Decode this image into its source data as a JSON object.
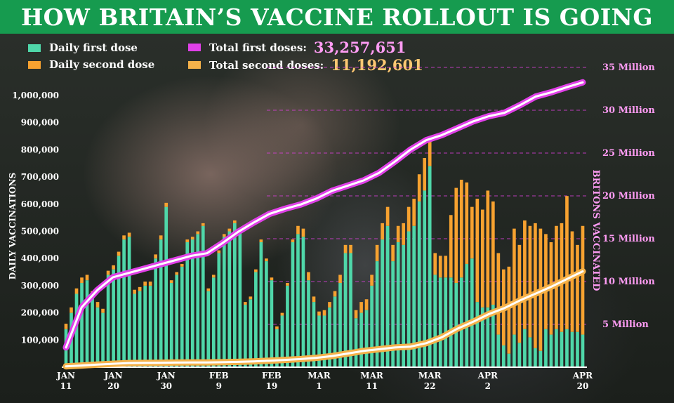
{
  "header": {
    "title": "HOW BRITAIN’S VACCINE ROLLOUT IS GOING"
  },
  "legend": {
    "daily_first": {
      "label": "Daily first dose",
      "color": "#4fd7a9"
    },
    "daily_second": {
      "label": "Daily second dose",
      "color": "#f7a230"
    },
    "total_first": {
      "label": "Total first doses:",
      "value": "33,257,651",
      "color": "#e040e8",
      "value_color": "#ff9cf4"
    },
    "total_second": {
      "label": "Total second doses:",
      "value": "11,192,601",
      "color": "#f5b24a",
      "value_color": "#ffc872"
    }
  },
  "chart_data": {
    "type": "bar",
    "ylabel": "DAILY VACCINATIONS",
    "ylabel_right": "BRITONS VACCINATED",
    "ylim": [
      0,
      1100000
    ],
    "ylim_right": [
      0,
      38000000
    ],
    "yticks": [
      {
        "value": 100000,
        "label": "100,000"
      },
      {
        "value": 200000,
        "label": "200,000"
      },
      {
        "value": 300000,
        "label": "300,000"
      },
      {
        "value": 400000,
        "label": "400,000"
      },
      {
        "value": 500000,
        "label": "500,000"
      },
      {
        "value": 600000,
        "label": "600,000"
      },
      {
        "value": 700000,
        "label": "700,000"
      },
      {
        "value": 800000,
        "label": "800,000"
      },
      {
        "value": 900000,
        "label": "900,000"
      },
      {
        "value": 1000000,
        "label": "1,000,000"
      }
    ],
    "yticks_right": [
      {
        "value": 5000000,
        "label": "5 Million"
      },
      {
        "value": 10000000,
        "label": "10 Million"
      },
      {
        "value": 15000000,
        "label": "15 Million"
      },
      {
        "value": 20000000,
        "label": "20 Million"
      },
      {
        "value": 25000000,
        "label": "25 Million"
      },
      {
        "value": 30000000,
        "label": "30 Million"
      },
      {
        "value": 35000000,
        "label": "35 Million"
      }
    ],
    "xticks": [
      {
        "index": 0,
        "label": "JAN\n11"
      },
      {
        "index": 9,
        "label": "JAN\n20"
      },
      {
        "index": 19,
        "label": "JAN\n30"
      },
      {
        "index": 29,
        "label": "FEB\n9"
      },
      {
        "index": 39,
        "label": "FEB\n19"
      },
      {
        "index": 48,
        "label": "MAR\n1"
      },
      {
        "index": 58,
        "label": "MAR\n11"
      },
      {
        "index": 69,
        "label": "MAR\n22"
      },
      {
        "index": 80,
        "label": "APR\n2"
      },
      {
        "index": 98,
        "label": "APR\n20"
      }
    ],
    "series": [
      {
        "name": "Daily first dose",
        "type": "bar",
        "color": "#4fd7a9",
        "values": [
          140000,
          200000,
          270000,
          310000,
          320000,
          260000,
          220000,
          200000,
          340000,
          360000,
          410000,
          470000,
          480000,
          270000,
          280000,
          300000,
          300000,
          400000,
          470000,
          590000,
          310000,
          340000,
          370000,
          460000,
          470000,
          490000,
          520000,
          280000,
          330000,
          420000,
          480000,
          500000,
          530000,
          500000,
          230000,
          250000,
          350000,
          460000,
          390000,
          320000,
          140000,
          190000,
          300000,
          460000,
          490000,
          480000,
          320000,
          240000,
          190000,
          190000,
          220000,
          260000,
          310000,
          420000,
          420000,
          180000,
          200000,
          210000,
          300000,
          390000,
          470000,
          520000,
          390000,
          460000,
          450000,
          500000,
          520000,
          610000,
          650000,
          740000,
          340000,
          330000,
          330000,
          330000,
          310000,
          330000,
          380000,
          400000,
          240000,
          220000,
          220000,
          230000,
          120000,
          80000,
          50000,
          120000,
          90000,
          140000,
          110000,
          70000,
          60000,
          140000,
          120000,
          140000,
          130000,
          140000,
          130000,
          130000,
          120000
        ]
      },
      {
        "name": "Daily second dose",
        "type": "bar",
        "color": "#f7a230",
        "values": [
          20000,
          20000,
          20000,
          20000,
          20000,
          20000,
          20000,
          15000,
          15000,
          15000,
          15000,
          15000,
          15000,
          15000,
          15000,
          15000,
          15000,
          15000,
          15000,
          15000,
          10000,
          10000,
          10000,
          10000,
          10000,
          10000,
          10000,
          10000,
          10000,
          10000,
          10000,
          10000,
          10000,
          10000,
          10000,
          10000,
          10000,
          10000,
          10000,
          10000,
          10000,
          10000,
          10000,
          10000,
          30000,
          30000,
          30000,
          20000,
          15000,
          20000,
          20000,
          20000,
          30000,
          30000,
          30000,
          30000,
          40000,
          40000,
          40000,
          60000,
          60000,
          70000,
          60000,
          60000,
          80000,
          90000,
          100000,
          100000,
          120000,
          110000,
          80000,
          80000,
          80000,
          230000,
          350000,
          360000,
          300000,
          190000,
          380000,
          360000,
          430000,
          380000,
          300000,
          280000,
          320000,
          390000,
          360000,
          400000,
          410000,
          460000,
          450000,
          350000,
          340000,
          380000,
          400000,
          490000,
          370000,
          320000,
          400000
        ]
      },
      {
        "name": "Total first doses",
        "type": "line",
        "color": "#e040e8",
        "axis": "right",
        "values": [
          2300000,
          7000000,
          9000000,
          10500000,
          11000000,
          11500000,
          12000000,
          12500000,
          13000000,
          13300000,
          14500000,
          15800000,
          16900000,
          17900000,
          18500000,
          19000000,
          19700000,
          20600000,
          21200000,
          21800000,
          22700000,
          24000000,
          25400000,
          26500000,
          27100000,
          27900000,
          28700000,
          29300000,
          29700000,
          30600000,
          31600000,
          32100000,
          32700000,
          33257651
        ]
      },
      {
        "name": "Total second doses",
        "type": "line",
        "color": "#f5b24a",
        "axis": "right",
        "values": [
          100000,
          200000,
          300000,
          400000,
          480000,
          500000,
          520000,
          540000,
          550000,
          560000,
          580000,
          620000,
          680000,
          760000,
          850000,
          950000,
          1100000,
          1300000,
          1600000,
          1900000,
          2100000,
          2300000,
          2400000,
          2800000,
          3500000,
          4500000,
          5300000,
          6200000,
          6900000,
          7800000,
          8600000,
          9400000,
          10300000,
          11192601
        ]
      }
    ]
  }
}
